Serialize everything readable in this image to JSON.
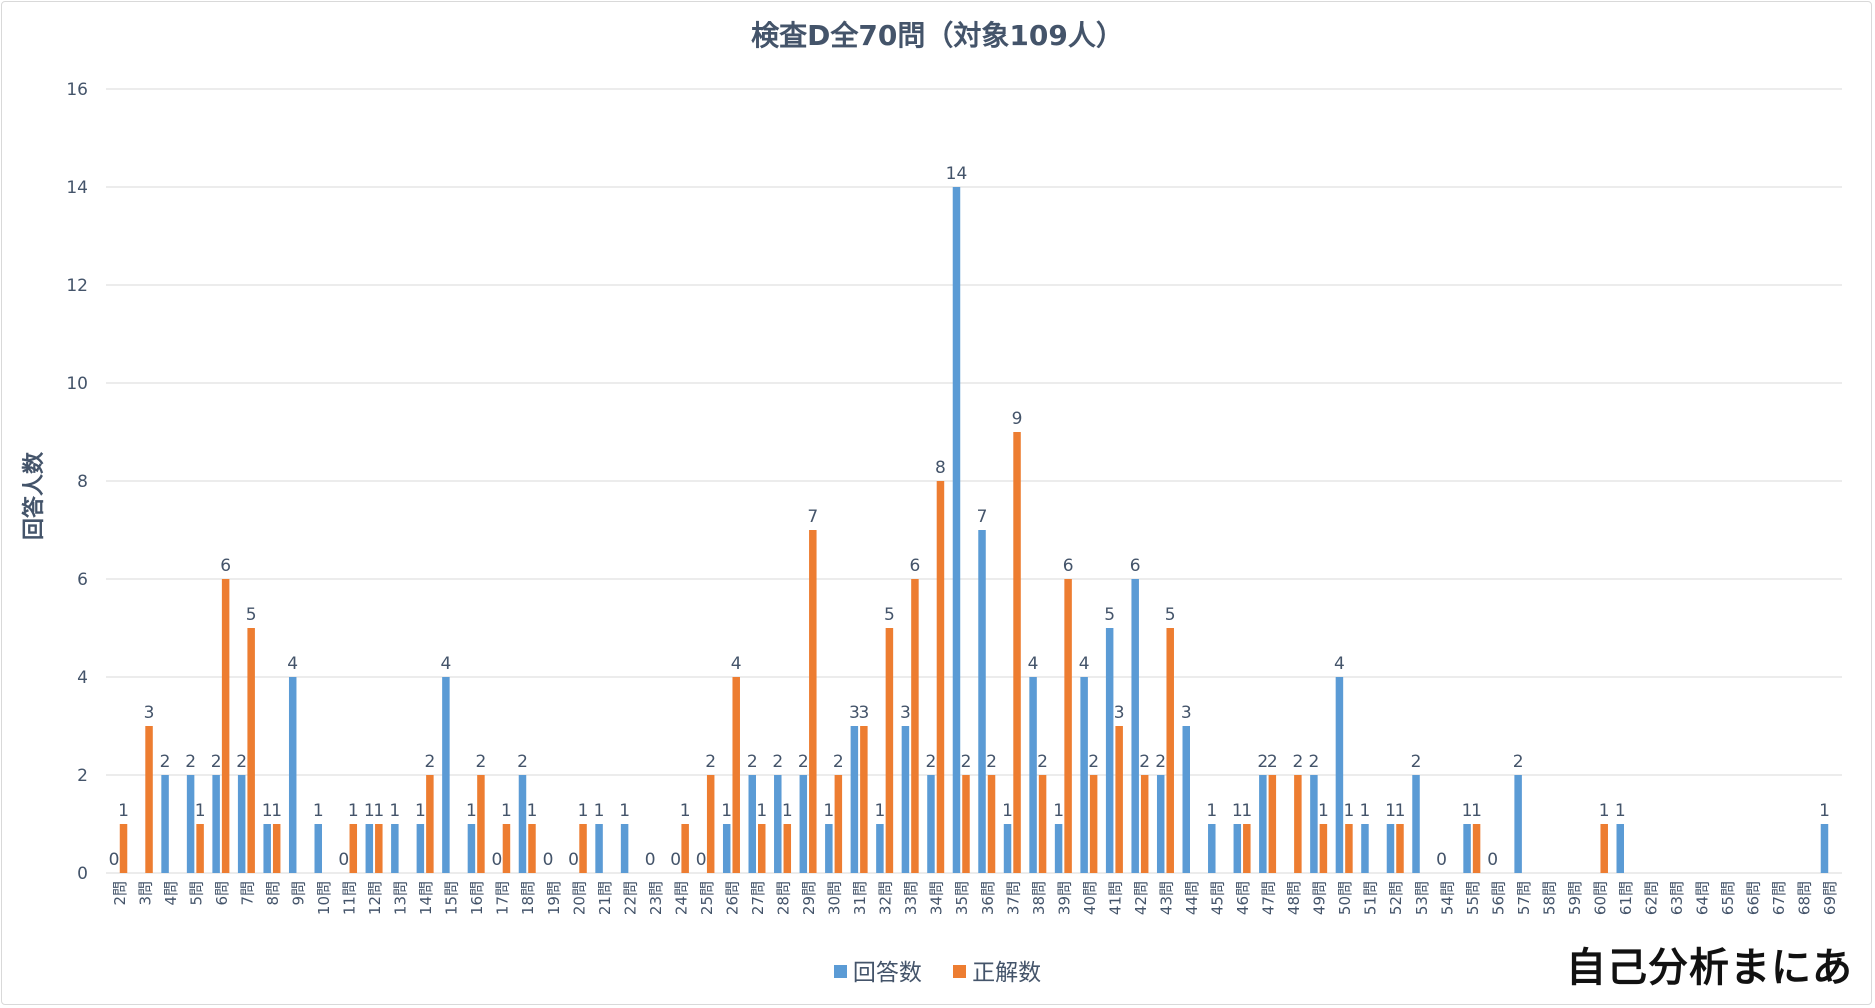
{
  "chart_data": {
    "type": "bar",
    "title": "検査D全70問（対象109人）",
    "xlabel": "",
    "ylabel": "回答人数",
    "ylim": [
      0,
      16
    ],
    "yticks": [
      0,
      2,
      4,
      6,
      8,
      10,
      12,
      14,
      16
    ],
    "grid": true,
    "legend_position": "bottom",
    "categories": [
      "2問",
      "3問",
      "4問",
      "5問",
      "6問",
      "7問",
      "8問",
      "9問",
      "10問",
      "11問",
      "12問",
      "13問",
      "14問",
      "15問",
      "16問",
      "17問",
      "18問",
      "19問",
      "20問",
      "21問",
      "22問",
      "23問",
      "24問",
      "25問",
      "26問",
      "27問",
      "28問",
      "29問",
      "30問",
      "31問",
      "32問",
      "33問",
      "34問",
      "35問",
      "36問",
      "37問",
      "38問",
      "39問",
      "40問",
      "41問",
      "42問",
      "43問",
      "44問",
      "45問",
      "46問",
      "47問",
      "48問",
      "49問",
      "50問",
      "51問",
      "52問",
      "53問",
      "54問",
      "55問",
      "56問",
      "57問",
      "58問",
      "59問",
      "60問",
      "61問",
      "62問",
      "63問",
      "64問",
      "65問",
      "66問",
      "67問",
      "68問",
      "69問"
    ],
    "series": [
      {
        "name": "回答数",
        "color": "#5b9bd5",
        "values": [
          0,
          null,
          2,
          2,
          2,
          2,
          1,
          4,
          1,
          0,
          1,
          1,
          1,
          4,
          1,
          0,
          2,
          0,
          0,
          1,
          1,
          0,
          0,
          0,
          1,
          2,
          2,
          2,
          1,
          3,
          1,
          3,
          2,
          14,
          7,
          1,
          4,
          1,
          4,
          5,
          6,
          2,
          3,
          1,
          1,
          2,
          null,
          2,
          4,
          1,
          1,
          2,
          0,
          1,
          0,
          2,
          null,
          null,
          null,
          1,
          null,
          null,
          null,
          null,
          null,
          null,
          null,
          1
        ]
      },
      {
        "name": "正解数",
        "color": "#ed7d31",
        "values": [
          1,
          3,
          null,
          1,
          6,
          5,
          1,
          null,
          null,
          1,
          1,
          null,
          2,
          null,
          2,
          1,
          1,
          null,
          1,
          null,
          null,
          null,
          1,
          2,
          4,
          1,
          1,
          7,
          2,
          3,
          5,
          6,
          8,
          2,
          2,
          9,
          2,
          6,
          2,
          3,
          2,
          5,
          null,
          null,
          1,
          2,
          2,
          1,
          1,
          null,
          1,
          null,
          null,
          1,
          null,
          null,
          null,
          null,
          1,
          null,
          null,
          null,
          null,
          null,
          null,
          null,
          null,
          null
        ]
      }
    ]
  },
  "logo_text": "自己分析まにあ"
}
